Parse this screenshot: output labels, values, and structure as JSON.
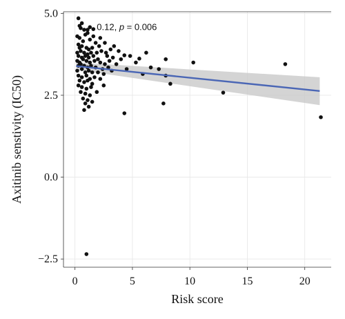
{
  "chart_data": {
    "type": "scatter",
    "title": "",
    "xlabel": "Risk score",
    "ylabel": "Axitinib senstivity (IC50)",
    "xlim": [
      -1.0,
      22.3
    ],
    "ylim": [
      -2.75,
      5.05
    ],
    "xticks": [
      0,
      5,
      10,
      15,
      20
    ],
    "yticks": [
      -2.5,
      0.0,
      2.5,
      5.0
    ],
    "ytick_labels": [
      "−2.5",
      "0.0",
      "2.5",
      "5.0"
    ],
    "grid": true,
    "annotation": {
      "prefix": "0.12, ",
      "p_symbol": "p",
      "suffix": " = 0.006",
      "x": 1.9,
      "y": 4.6
    },
    "regression": {
      "x": [
        0.1,
        21.3
      ],
      "y": [
        3.39,
        2.63
      ],
      "ci_upper": [
        3.5,
        3.05
      ],
      "ci_lower": [
        3.28,
        2.2
      ],
      "line_color": "#4a66b5",
      "band_color": "#c9c9c9"
    },
    "points": [
      [
        0.3,
        4.85
      ],
      [
        0.4,
        4.62
      ],
      [
        0.6,
        4.7
      ],
      [
        0.5,
        4.55
      ],
      [
        0.8,
        4.5
      ],
      [
        1.1,
        4.5
      ],
      [
        1.3,
        4.58
      ],
      [
        1.6,
        4.52
      ],
      [
        1.1,
        4.4
      ],
      [
        0.9,
        4.35
      ],
      [
        0.2,
        4.3
      ],
      [
        0.4,
        4.25
      ],
      [
        0.7,
        4.15
      ],
      [
        1.3,
        4.2
      ],
      [
        1.8,
        4.1
      ],
      [
        0.3,
        4.05
      ],
      [
        0.6,
        4.0
      ],
      [
        1.0,
        3.95
      ],
      [
        1.2,
        3.9
      ],
      [
        1.5,
        3.95
      ],
      [
        2.1,
        4.0
      ],
      [
        0.2,
        3.8
      ],
      [
        0.5,
        3.85
      ],
      [
        0.8,
        3.8
      ],
      [
        1.1,
        3.75
      ],
      [
        1.4,
        3.8
      ],
      [
        1.9,
        3.8
      ],
      [
        2.3,
        3.85
      ],
      [
        2.7,
        3.8
      ],
      [
        0.3,
        3.7
      ],
      [
        0.6,
        3.65
      ],
      [
        0.9,
        3.7
      ],
      [
        1.2,
        3.65
      ],
      [
        1.6,
        3.7
      ],
      [
        2.0,
        3.6
      ],
      [
        0.2,
        3.55
      ],
      [
        0.4,
        3.5
      ],
      [
        0.7,
        3.6
      ],
      [
        1.0,
        3.55
      ],
      [
        1.3,
        3.5
      ],
      [
        1.7,
        3.55
      ],
      [
        2.2,
        3.5
      ],
      [
        2.6,
        3.45
      ],
      [
        3.0,
        3.55
      ],
      [
        0.3,
        3.4
      ],
      [
        0.5,
        3.45
      ],
      [
        0.8,
        3.4
      ],
      [
        1.1,
        3.35
      ],
      [
        1.4,
        3.4
      ],
      [
        1.8,
        3.35
      ],
      [
        2.4,
        3.3
      ],
      [
        2.9,
        3.35
      ],
      [
        0.2,
        3.25
      ],
      [
        0.6,
        3.3
      ],
      [
        0.9,
        3.2
      ],
      [
        1.2,
        3.25
      ],
      [
        1.5,
        3.2
      ],
      [
        2.0,
        3.2
      ],
      [
        2.5,
        3.15
      ],
      [
        0.3,
        3.1
      ],
      [
        0.6,
        3.05
      ],
      [
        1.0,
        3.1
      ],
      [
        1.3,
        3.0
      ],
      [
        1.7,
        3.05
      ],
      [
        2.2,
        3.0
      ],
      [
        0.4,
        2.95
      ],
      [
        0.8,
        2.9
      ],
      [
        1.1,
        2.95
      ],
      [
        1.5,
        2.85
      ],
      [
        0.3,
        2.8
      ],
      [
        0.6,
        2.75
      ],
      [
        1.0,
        2.7
      ],
      [
        1.4,
        2.75
      ],
      [
        0.5,
        2.6
      ],
      [
        0.9,
        2.55
      ],
      [
        1.3,
        2.5
      ],
      [
        0.7,
        2.4
      ],
      [
        1.1,
        2.35
      ],
      [
        0.9,
        2.25
      ],
      [
        1.2,
        2.15
      ],
      [
        0.8,
        2.05
      ],
      [
        1.5,
        2.3
      ],
      [
        1.9,
        2.6
      ],
      [
        0.4,
        3.95
      ],
      [
        1.6,
        4.3
      ],
      [
        2.2,
        4.25
      ],
      [
        2.6,
        4.1
      ],
      [
        3.4,
        4.0
      ],
      [
        3.1,
        3.9
      ],
      [
        3.8,
        3.85
      ],
      [
        2.8,
        3.7
      ],
      [
        3.3,
        3.65
      ],
      [
        4.0,
        3.6
      ],
      [
        4.3,
        3.72
      ],
      [
        4.8,
        3.7
      ],
      [
        5.3,
        3.5
      ],
      [
        5.6,
        3.62
      ],
      [
        6.2,
        3.8
      ],
      [
        6.6,
        3.35
      ],
      [
        7.3,
        3.3
      ],
      [
        7.9,
        3.6
      ],
      [
        7.9,
        3.1
      ],
      [
        8.3,
        2.85
      ],
      [
        7.7,
        2.25
      ],
      [
        4.3,
        1.95
      ],
      [
        10.3,
        3.5
      ],
      [
        12.9,
        2.58
      ],
      [
        18.3,
        3.45
      ],
      [
        21.4,
        1.83
      ],
      [
        1.0,
        -2.35
      ],
      [
        3.2,
        3.25
      ],
      [
        3.6,
        3.45
      ],
      [
        2.5,
        2.8
      ],
      [
        4.5,
        3.3
      ],
      [
        5.9,
        3.15
      ]
    ],
    "point_color": "#111111"
  }
}
